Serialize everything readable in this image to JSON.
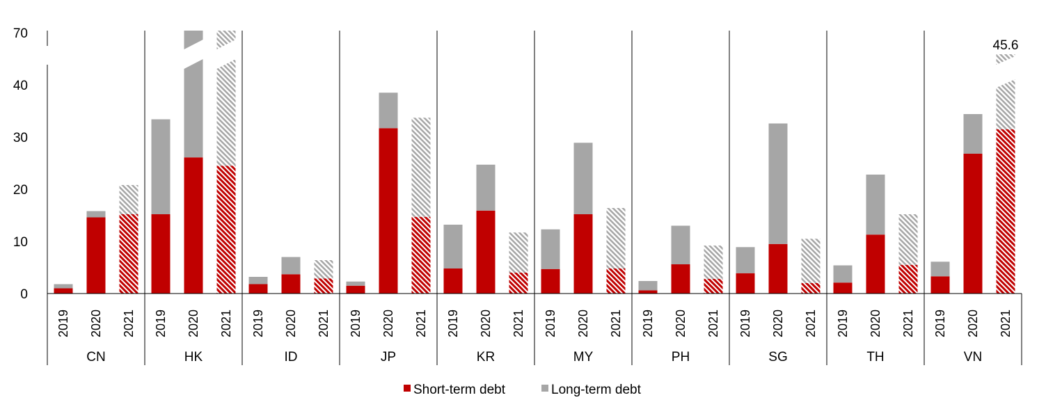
{
  "chart_data": {
    "type": "bar",
    "stacked": true,
    "title": "",
    "xlabel": "",
    "ylabel": "",
    "ylim": [
      0,
      70
    ],
    "axis_break": [
      40,
      70
    ],
    "y_ticks": [
      "0",
      "10",
      "20",
      "30",
      "40",
      "70"
    ],
    "groups": [
      "CN",
      "HK",
      "ID",
      "JP",
      "KR",
      "MY",
      "PH",
      "SG",
      "TH",
      "VN"
    ],
    "years": [
      "2019",
      "2020",
      "2021"
    ],
    "hatched_year": "2021",
    "series": [
      {
        "name": "Short-term debt",
        "color": "#c00000",
        "values": [
          [
            1.0,
            14.6,
            15.2
          ],
          [
            15.2,
            26.1,
            24.5
          ],
          [
            1.8,
            3.7,
            2.9
          ],
          [
            1.5,
            31.7,
            14.7
          ],
          [
            4.8,
            15.9,
            4.0
          ],
          [
            4.7,
            15.2,
            4.8
          ],
          [
            0.6,
            5.6,
            2.8
          ],
          [
            3.9,
            9.5,
            2.0
          ],
          [
            2.1,
            11.3,
            5.5
          ],
          [
            3.3,
            26.8,
            31.5
          ]
        ]
      },
      {
        "name": "Long-term debt",
        "color": "#a6a6a6",
        "values": [
          [
            0.8,
            1.2,
            5.6
          ],
          [
            18.2,
            null,
            null
          ],
          [
            1.4,
            3.3,
            3.5
          ],
          [
            0.8,
            6.8,
            19.0
          ],
          [
            8.4,
            8.8,
            7.7
          ],
          [
            7.6,
            13.7,
            11.6
          ],
          [
            1.8,
            7.4,
            6.4
          ],
          [
            5.0,
            23.1,
            8.5
          ],
          [
            3.3,
            11.5,
            9.7
          ],
          [
            2.8,
            7.6,
            14.1
          ]
        ]
      }
    ],
    "exceeds_axis": [
      [
        "HK",
        "2020"
      ],
      [
        "HK",
        "2021"
      ]
    ],
    "annotations": [
      {
        "group": "VN",
        "year": "2021",
        "text": "45.6"
      }
    ],
    "legend": {
      "placement": "bottom",
      "entries": [
        "Short-term debt",
        "Long-term debt"
      ]
    },
    "grid": false
  }
}
